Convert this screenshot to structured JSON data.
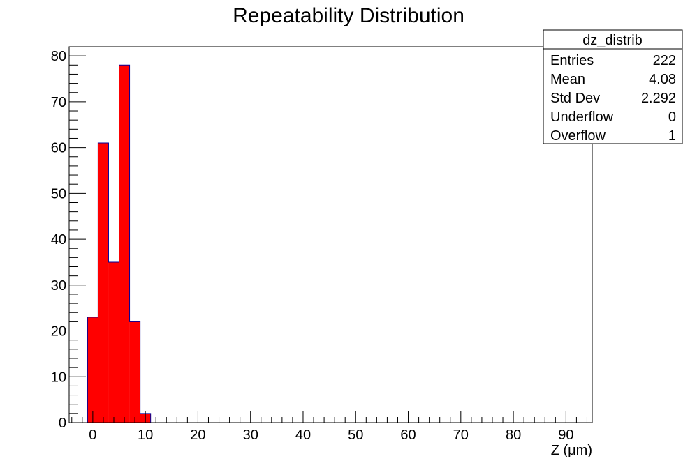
{
  "chart_data": {
    "type": "bar",
    "title": "Repeatability Distribution",
    "xlabel": "Z (μm)",
    "ylabel": "",
    "xlim": [
      -4.5,
      95
    ],
    "ylim": [
      0,
      82
    ],
    "bin_width": 2,
    "bins": [
      {
        "x_low": -1,
        "x_high": 1,
        "count": 23
      },
      {
        "x_low": 1,
        "x_high": 3,
        "count": 61
      },
      {
        "x_low": 3,
        "x_high": 5,
        "count": 35
      },
      {
        "x_low": 5,
        "x_high": 7,
        "count": 78
      },
      {
        "x_low": 7,
        "x_high": 9,
        "count": 22
      },
      {
        "x_low": 9,
        "x_high": 11,
        "count": 2
      }
    ],
    "x_ticks": [
      "0",
      "10",
      "20",
      "30",
      "40",
      "50",
      "60",
      "70",
      "80",
      "90"
    ],
    "y_ticks": [
      "0",
      "10",
      "20",
      "30",
      "40",
      "50",
      "60",
      "70",
      "80"
    ],
    "fill_color": "#ff0000",
    "line_color": "#000099",
    "grid": false,
    "legend": "none",
    "stats_box": {
      "title": "dz_distrib",
      "placement": "top-right",
      "rows": [
        {
          "label": "Entries",
          "value": "222"
        },
        {
          "label": "Mean",
          "value": "4.08"
        },
        {
          "label": "Std Dev",
          "value": "2.292"
        },
        {
          "label": "Underflow",
          "value": "0"
        },
        {
          "label": "Overflow",
          "value": "1"
        }
      ]
    }
  }
}
